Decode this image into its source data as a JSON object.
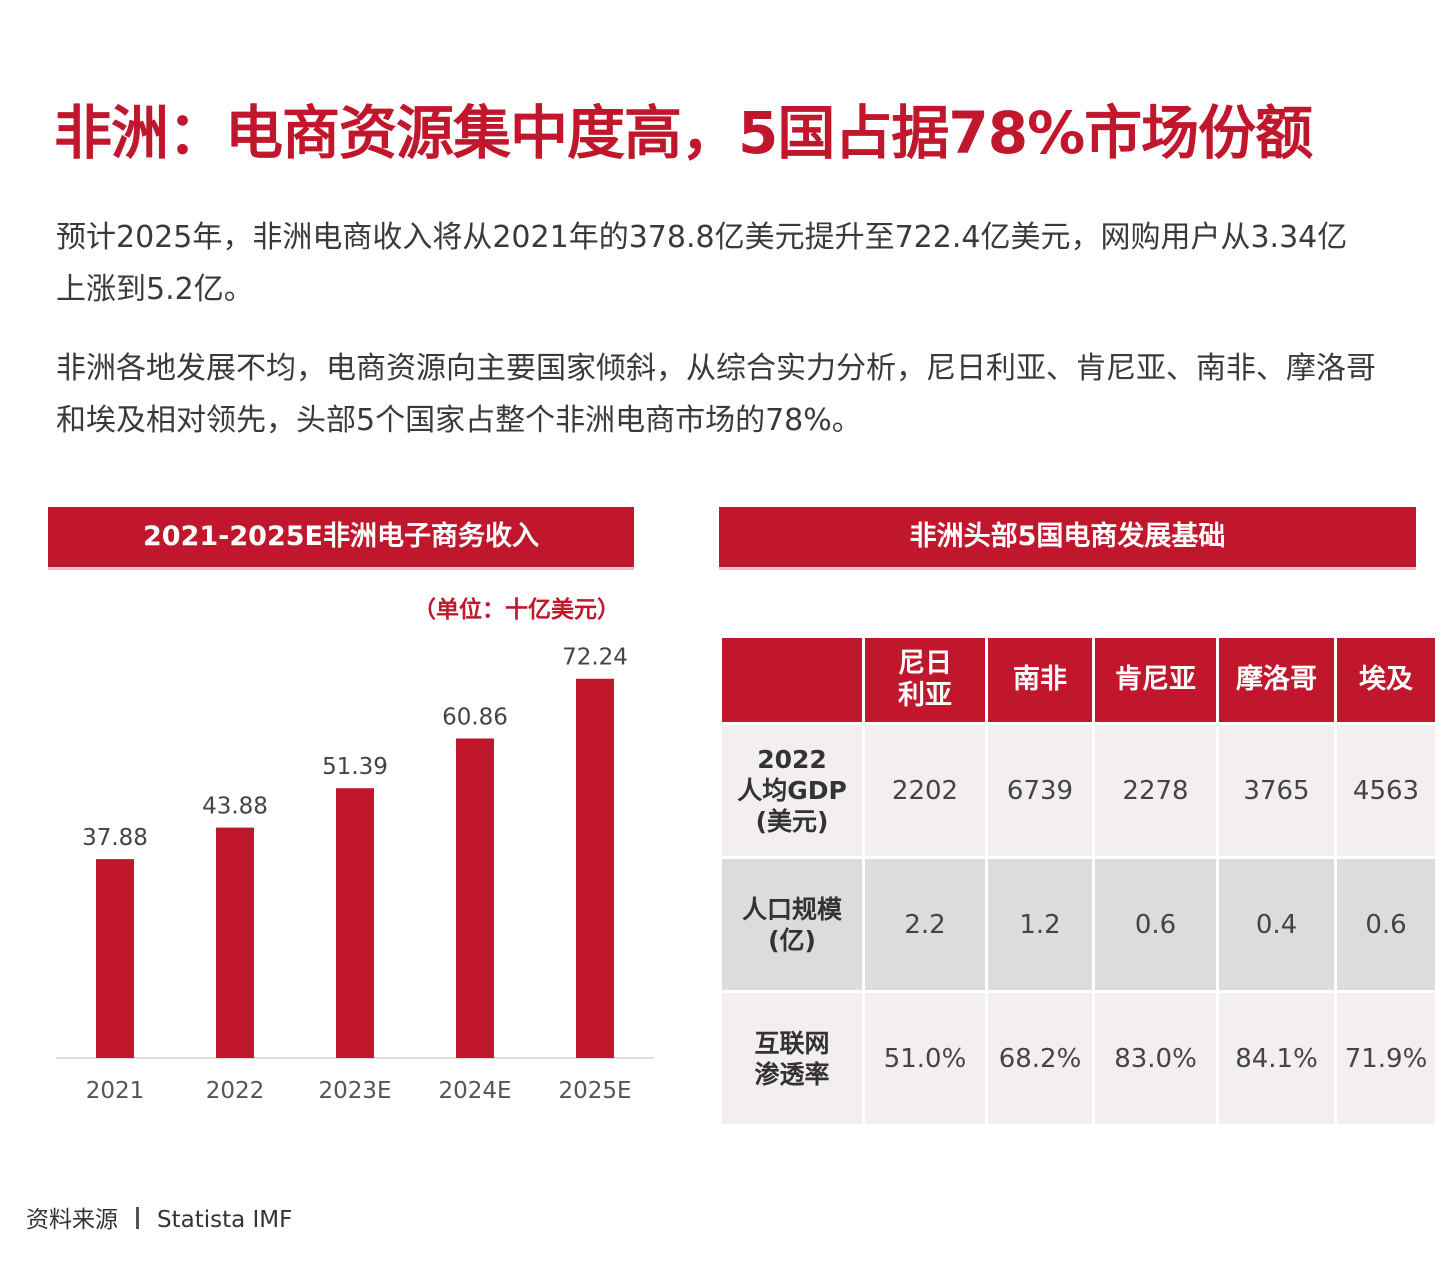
{
  "title": "非洲：电商资源集中度高，5国占据78%市场份额",
  "paragraphs": [
    "预计2025年，非洲电商收入将从2021年的378.8亿美元提升至722.4亿美元，网购用户从3.34亿上涨到5.2亿。",
    "非洲各地发展不均，电商资源向主要国家倾斜，从综合实力分析，尼日利亚、肯尼亚、南非、摩洛哥和埃及相对领先，头部5个国家占整个非洲电商市场的78%。"
  ],
  "chart_data": [
    {
      "type": "bar",
      "title": "2021-2025E非洲电子商务收入",
      "unit_label": "（单位：十亿美元）",
      "categories": [
        "2021",
        "2022",
        "2023E",
        "2024E",
        "2025E"
      ],
      "values": [
        37.88,
        43.88,
        51.39,
        60.86,
        72.24
      ],
      "value_labels": [
        "37.88",
        "43.88",
        "51.39",
        "60.86",
        "72.24"
      ],
      "ylim": [
        0,
        80
      ],
      "grid": false,
      "bar_color": "#c0172d"
    },
    {
      "type": "table",
      "title": "非洲头部5国电商发展基础",
      "columns": [
        "",
        "尼日利亚",
        "南非",
        "肯尼亚",
        "摩洛哥",
        "埃及"
      ],
      "column_lines": [
        [
          ""
        ],
        [
          "尼日",
          "利亚"
        ],
        [
          "南非"
        ],
        [
          "肯尼亚"
        ],
        [
          "摩洛哥"
        ],
        [
          "埃及"
        ]
      ],
      "rows": [
        {
          "label_lines": [
            "2022",
            "人均GDP",
            "(美元)"
          ],
          "values": [
            "2202",
            "6739",
            "2278",
            "3765",
            "4563"
          ]
        },
        {
          "label_lines": [
            "人口规模",
            "(亿)"
          ],
          "values": [
            "2.2",
            "1.2",
            "0.6",
            "0.4",
            "0.6"
          ]
        },
        {
          "label_lines": [
            "互联网",
            "渗透率"
          ],
          "values": [
            "51.0%",
            "68.2%",
            "83.0%",
            "84.1%",
            "71.9%"
          ]
        }
      ]
    }
  ],
  "source": {
    "label": "资料来源",
    "text": "Statista  IMF"
  },
  "colors": {
    "accent": "#c0172d",
    "row_light": "#f3eef1",
    "row_gray": "#dcdcdc"
  }
}
